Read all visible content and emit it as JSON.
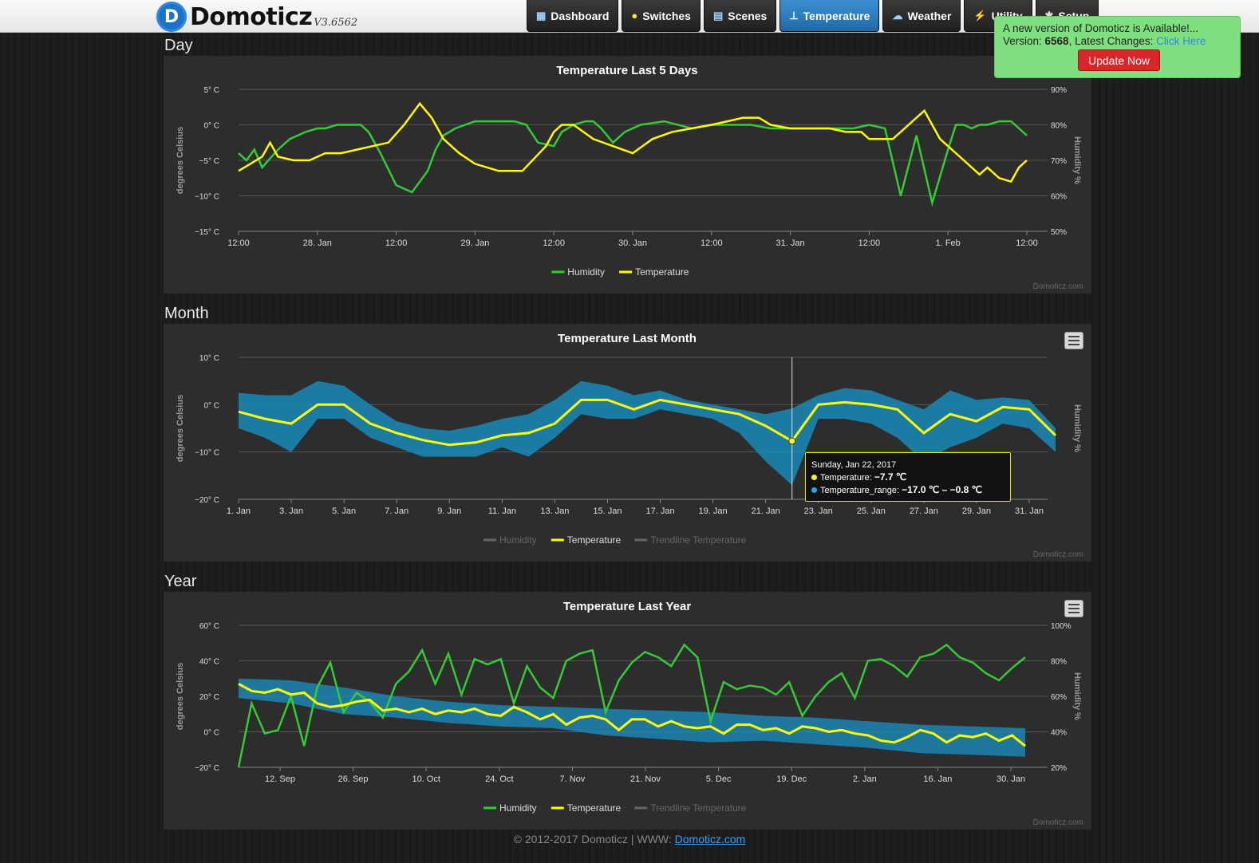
{
  "app": {
    "name": "Domoticz",
    "version": "V3.6562"
  },
  "nav": [
    {
      "label": "Dashboard",
      "icon": "dashboard-icon",
      "active": false
    },
    {
      "label": "Switches",
      "icon": "bulb-icon",
      "active": false
    },
    {
      "label": "Scenes",
      "icon": "scenes-icon",
      "active": false
    },
    {
      "label": "Temperature",
      "icon": "thermometer-icon",
      "active": true
    },
    {
      "label": "Weather",
      "icon": "cloud-icon",
      "active": false
    },
    {
      "label": "Utility",
      "icon": "utility-icon",
      "active": false
    },
    {
      "label": "Setup",
      "icon": "setup-icon",
      "active": false
    }
  ],
  "notice": {
    "line1": "A new version of Domoticz is Available!...",
    "version_label": "Version: ",
    "version": "6568",
    "changes_label": ", Latest Changes: ",
    "changes_link": "Click Here",
    "button": "Update Now"
  },
  "sections": {
    "day": "Day",
    "month": "Month",
    "year": "Year"
  },
  "credit": "Domoticz.com",
  "footer": {
    "text": "© 2012-2017 Domoticz | WWW: ",
    "link": "Domoticz.com"
  },
  "tooltip": {
    "date": "Sunday, Jan 22, 2017",
    "temp_label": "Temperature: ",
    "temp_value": "−7.7 ℃",
    "range_label": "Temperature_range: ",
    "range_value": "−17.0 ℃ – −0.8 ℃"
  },
  "colors": {
    "humidity": "#33cc33",
    "temperature": "#ffff00",
    "range": "#1a8ab8",
    "trend": "#777777"
  },
  "chart_data": [
    {
      "id": "day",
      "type": "line",
      "title": "Temperature Last 5 Days",
      "ylabel": "degrees Celsius",
      "ylabel2": "Humidity %",
      "ylim": [
        -15,
        5
      ],
      "ylim2": [
        50,
        90
      ],
      "yticks": [
        "5° C",
        "0° C",
        "−5° C",
        "−10° C",
        "−15° C"
      ],
      "yticks2": [
        "90%",
        "80%",
        "70%",
        "60%",
        "50%"
      ],
      "xticks": [
        "12:00",
        "28. Jan",
        "12:00",
        "29. Jan",
        "12:00",
        "30. Jan",
        "12:00",
        "31. Jan",
        "12:00",
        "1. Feb",
        "12:00"
      ],
      "legend": [
        "Humidity",
        "Temperature"
      ],
      "series": [
        {
          "name": "Humidity",
          "axis": "right",
          "x": [
            0,
            0.2,
            0.4,
            0.6,
            1,
            1.3,
            1.7,
            2,
            2.2,
            2.5,
            2.9,
            3.1,
            3.3,
            3.6,
            4,
            4.4,
            4.8,
            5.0,
            5.2,
            5.5,
            6,
            6.6,
            7,
            7.3,
            7.6,
            8.0,
            8.2,
            8.5,
            8.8,
            9.0,
            9.2,
            9.5,
            9.8,
            10.2,
            10.8,
            11.5,
            12.0,
            12.3,
            12.6,
            13.0,
            13.5,
            14.0,
            14.6,
            15.2,
            15.6,
            16.0,
            16.4,
            16.8,
            17.2,
            17.6,
            18.0,
            18.2,
            18.4,
            18.6,
            18.8,
            19.0,
            19.3,
            19.6,
            19.9,
            20.0
          ],
          "values": [
            72,
            70,
            73,
            68,
            73,
            76,
            78,
            79,
            79,
            80,
            80,
            80,
            78,
            72,
            63,
            61,
            67,
            73,
            77,
            79,
            81,
            81,
            81,
            80,
            75,
            74,
            78,
            80,
            81,
            81,
            79,
            75,
            78,
            80,
            81,
            79,
            80,
            80,
            80,
            80,
            79,
            79,
            79,
            79,
            79,
            80,
            79,
            60,
            77,
            58,
            73,
            80,
            80,
            79,
            80,
            80,
            81,
            81,
            78,
            77
          ]
        },
        {
          "name": "Temperature",
          "axis": "left",
          "x": [
            0,
            0.3,
            0.6,
            0.8,
            1.0,
            1.4,
            1.8,
            2.2,
            2.6,
            3.0,
            3.4,
            3.8,
            4.2,
            4.6,
            4.9,
            5.2,
            5.6,
            6.0,
            6.6,
            7.2,
            7.8,
            8.0,
            8.2,
            8.5,
            9.0,
            9.5,
            10.0,
            10.5,
            11.0,
            11.5,
            12.0,
            12.4,
            12.8,
            13.2,
            13.5,
            14.0,
            14.5,
            15.0,
            15.4,
            15.8,
            16.0,
            16.2,
            16.4,
            16.6,
            16.8,
            17.0,
            17.2,
            17.4,
            17.6,
            17.8,
            18.0,
            18.4,
            18.8,
            19.0,
            19.3,
            19.6,
            19.8,
            20.0
          ],
          "values": [
            -6.5,
            -5.5,
            -4.5,
            -2.5,
            -4.5,
            -5,
            -5,
            -4,
            -4,
            -3.5,
            -3,
            -2.5,
            0,
            3,
            1,
            -2,
            -4,
            -5.5,
            -6.5,
            -6.5,
            -3,
            -1,
            0,
            0,
            -2,
            -3,
            -4,
            -2,
            -1,
            -0.5,
            0,
            0.5,
            1,
            1,
            0,
            -0.5,
            -0.5,
            -0.5,
            -1,
            -1,
            -2,
            -2,
            -2,
            -2,
            -1,
            0,
            1,
            2,
            0,
            -2,
            -3,
            -5,
            -7,
            -6,
            -7.5,
            -8,
            -6,
            -5
          ]
        }
      ]
    },
    {
      "id": "month",
      "type": "area",
      "title": "Temperature Last Month",
      "ylabel": "degrees Celsius",
      "ylabel2": "Humidity %",
      "ylim": [
        -20,
        10
      ],
      "yticks": [
        "10° C",
        "0° C",
        "−10° C",
        "−20° C"
      ],
      "xticks": [
        "1. Jan",
        "3. Jan",
        "5. Jan",
        "7. Jan",
        "9. Jan",
        "11. Jan",
        "13. Jan",
        "15. Jan",
        "17. Jan",
        "19. Jan",
        "21. Jan",
        "23. Jan",
        "25. Jan",
        "27. Jan",
        "29. Jan",
        "31. Jan"
      ],
      "legend": [
        "Humidity",
        "Temperature",
        "Trendline Temperature"
      ],
      "legend_active": [
        false,
        true,
        false
      ],
      "series": [
        {
          "name": "Temperature",
          "x": [
            1,
            2,
            3,
            4,
            5,
            6,
            7,
            8,
            9,
            10,
            11,
            12,
            13,
            14,
            15,
            16,
            17,
            18,
            19,
            20,
            21,
            22,
            23,
            24,
            25,
            26,
            27,
            28,
            29,
            30,
            31,
            32
          ],
          "values": [
            -1.5,
            -3,
            -4,
            0,
            0,
            -4,
            -6,
            -7.5,
            -8.5,
            -8,
            -6.5,
            -6,
            -4,
            1,
            1,
            -1,
            1,
            0,
            -1,
            -2,
            -4.5,
            -7.7,
            0,
            0.5,
            0,
            -1,
            -6,
            -2,
            -3.5,
            -0.5,
            -1,
            -6.5
          ]
        },
        {
          "name": "Temperature_range_low",
          "x": [
            1,
            2,
            3,
            4,
            5,
            6,
            7,
            8,
            9,
            10,
            11,
            12,
            13,
            14,
            15,
            16,
            17,
            18,
            19,
            20,
            21,
            22,
            23,
            24,
            25,
            26,
            27,
            28,
            29,
            30,
            31,
            32
          ],
          "values": [
            -5,
            -7,
            -10,
            -3,
            -3,
            -7,
            -9,
            -11,
            -11,
            -11,
            -9,
            -11,
            -7,
            -2,
            -3,
            -3,
            -1,
            -2,
            -3,
            -6,
            -12,
            -17,
            -3,
            -3,
            -4,
            -7,
            -12,
            -9,
            -7,
            -4,
            -5,
            -10
          ]
        },
        {
          "name": "Temperature_range_high",
          "x": [
            1,
            2,
            3,
            4,
            5,
            6,
            7,
            8,
            9,
            10,
            11,
            12,
            13,
            14,
            15,
            16,
            17,
            18,
            19,
            20,
            21,
            22,
            23,
            24,
            25,
            26,
            27,
            28,
            29,
            30,
            31,
            32
          ],
          "values": [
            2.5,
            2,
            2,
            5,
            4,
            0,
            -3.5,
            -5,
            -5.5,
            -4.5,
            -3,
            -2,
            1,
            5,
            4,
            2,
            3,
            1,
            0,
            -1,
            -2,
            -0.8,
            2,
            3.5,
            3,
            1,
            -1,
            3,
            1,
            1.5,
            1,
            -5
          ]
        }
      ]
    },
    {
      "id": "year",
      "type": "line",
      "title": "Temperature Last Year",
      "ylabel": "degrees Celsius",
      "ylabel2": "Humidity %",
      "ylim": [
        -20,
        60
      ],
      "ylim2": [
        20,
        100
      ],
      "yticks": [
        "60° C",
        "40° C",
        "20° C",
        "0° C",
        "−20° C"
      ],
      "yticks2": [
        "100%",
        "80%",
        "60%",
        "40%",
        "20%"
      ],
      "xticks": [
        "12. Sep",
        "26. Sep",
        "10. Oct",
        "24. Oct",
        "7. Nov",
        "21. Nov",
        "5. Dec",
        "19. Dec",
        "2. Jan",
        "16. Jan",
        "30. Jan"
      ],
      "legend": [
        "Humidity",
        "Temperature",
        "Trendline Temperature"
      ],
      "legend_active": [
        true,
        true,
        false
      ],
      "series": [
        {
          "name": "Humidity",
          "axis": "right",
          "x": [
            0,
            1,
            2,
            3,
            4,
            5,
            6,
            7,
            8,
            9,
            10,
            11,
            12,
            13,
            14,
            15,
            16,
            17,
            18,
            19,
            20,
            21,
            22,
            23,
            24,
            25,
            26,
            27,
            28,
            29,
            30,
            31,
            32,
            33,
            34,
            35,
            36,
            37,
            38,
            39,
            40,
            41,
            42,
            43,
            44,
            45,
            46,
            47,
            48,
            49,
            50,
            51,
            52,
            53,
            54,
            55,
            56,
            57,
            58,
            59,
            60
          ],
          "values": [
            20,
            56,
            39,
            41,
            60,
            32,
            65,
            79,
            51,
            62,
            57,
            48,
            67,
            74,
            86,
            67,
            84,
            61,
            81,
            78,
            81,
            56,
            77,
            65,
            59,
            80,
            84,
            86,
            51,
            69,
            79,
            85,
            82,
            77,
            89,
            82,
            46,
            68,
            64,
            66,
            65,
            61,
            68,
            49,
            60,
            68,
            73,
            59,
            80,
            81,
            77,
            71,
            82,
            84,
            89,
            82,
            79,
            73,
            69,
            76,
            82
          ]
        },
        {
          "name": "Temperature",
          "axis": "left",
          "x": [
            0,
            1,
            2,
            3,
            4,
            5,
            6,
            7,
            8,
            9,
            10,
            11,
            12,
            13,
            14,
            15,
            16,
            17,
            18,
            19,
            20,
            21,
            22,
            23,
            24,
            25,
            26,
            27,
            28,
            29,
            30,
            31,
            32,
            33,
            34,
            35,
            36,
            37,
            38,
            39,
            40,
            41,
            42,
            43,
            44,
            45,
            46,
            47,
            48,
            49,
            50,
            51,
            52,
            53,
            54,
            55,
            56,
            57,
            58,
            59,
            60
          ],
          "values": [
            27,
            23,
            22,
            24,
            21,
            22,
            16,
            14,
            15,
            17,
            18,
            12,
            13,
            11,
            13,
            10,
            12,
            11,
            13,
            10,
            9,
            14,
            11,
            7,
            10,
            4,
            8,
            9,
            7,
            1,
            7,
            7,
            3,
            6,
            3,
            2,
            3,
            -1,
            4,
            4,
            1,
            2,
            -1,
            3,
            2,
            0,
            1,
            -1,
            -2,
            -5,
            -6,
            -3,
            1,
            -1,
            -6,
            -2,
            -3,
            -1,
            -5,
            -2,
            -8
          ]
        },
        {
          "name": "Temperature_range_low",
          "x": [
            0,
            4,
            8,
            12,
            16,
            20,
            24,
            28,
            32,
            36,
            40,
            44,
            48,
            52,
            56,
            60
          ],
          "values": [
            19,
            16,
            10,
            8,
            5,
            3,
            2,
            -2,
            -4,
            -6,
            -5,
            -7,
            -9,
            -12,
            -13,
            -14
          ]
        },
        {
          "name": "Temperature_range_high",
          "x": [
            0,
            4,
            8,
            12,
            16,
            20,
            24,
            28,
            32,
            36,
            40,
            44,
            48,
            52,
            56,
            60
          ],
          "values": [
            30,
            29,
            25,
            20,
            17,
            15,
            14,
            13,
            12,
            11,
            9,
            8,
            6,
            4,
            3,
            2
          ]
        }
      ]
    }
  ]
}
